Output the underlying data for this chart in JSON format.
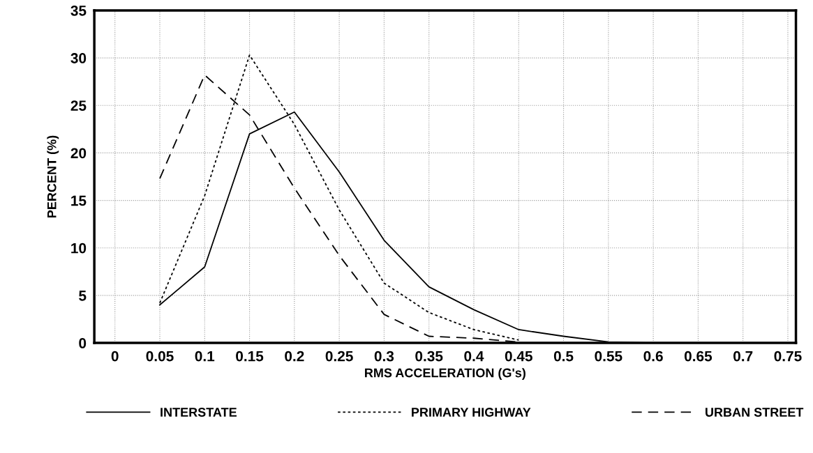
{
  "chart_data": {
    "type": "line",
    "xlabel": "RMS ACCELERATION (G's)",
    "ylabel": "PERCENT (%)",
    "x": [
      0.05,
      0.1,
      0.15,
      0.2,
      0.25,
      0.3,
      0.35,
      0.4,
      0.45,
      0.5,
      0.55,
      0.6,
      0.65,
      0.7,
      0.75
    ],
    "series": [
      {
        "name": "INTERSTATE",
        "color": "#000000",
        "line_style": "solid",
        "values": [
          4,
          8,
          22,
          24.3,
          18,
          10.8,
          5.9,
          3.5,
          1.4,
          0.7,
          0.1,
          0,
          0,
          0,
          0
        ]
      },
      {
        "name": "PRIMARY HIGHWAY",
        "color": "#000000",
        "line_style": "dotted",
        "values": [
          4.2,
          15.5,
          30.3,
          23,
          14,
          6.3,
          3.2,
          1.4,
          0.3,
          null,
          null,
          null,
          null,
          null,
          null
        ]
      },
      {
        "name": "URBAN STREET",
        "color": "#000000",
        "line_style": "dashed",
        "values": [
          17.3,
          28.2,
          24,
          16.3,
          9.2,
          3,
          0.7,
          0.5,
          0.1,
          null,
          null,
          null,
          null,
          null,
          null
        ]
      }
    ],
    "xlim": [
      -0.023,
      0.759
    ],
    "xticks": [
      0,
      0.05,
      0.1,
      0.15,
      0.2,
      0.25,
      0.3,
      0.35,
      0.4,
      0.45,
      0.5,
      0.55,
      0.6,
      0.65,
      0.7,
      0.75
    ],
    "ylim": [
      0,
      35
    ],
    "yticks": [
      0,
      5,
      10,
      15,
      20,
      25,
      30,
      35
    ],
    "grid": true,
    "legend": "bottom",
    "marker": "none"
  }
}
